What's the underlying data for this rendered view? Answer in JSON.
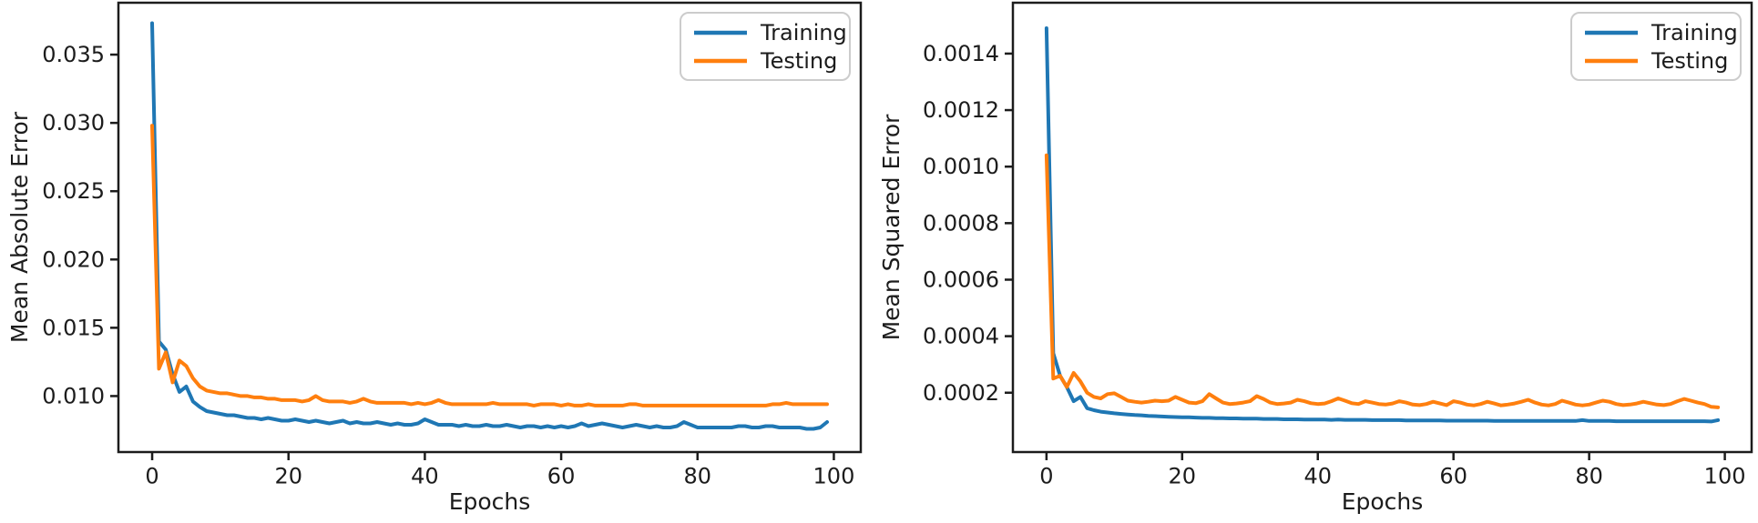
{
  "figure": {
    "background": "#ffffff",
    "description": "Two line charts showing training vs testing error curves over 100 epochs"
  },
  "colors": {
    "training": "#1f77b4",
    "testing": "#ff7f0e",
    "axis": "#1c1c1c",
    "legend_border": "#cccccc"
  },
  "chart_data": [
    {
      "type": "line",
      "title": "",
      "xlabel": "Epochs",
      "ylabel": "Mean Absolute Error",
      "xlim": [
        -4.95,
        103.95
      ],
      "ylim": [
        0.0059,
        0.0388
      ],
      "xticks": [
        0,
        20,
        40,
        60,
        80,
        100
      ],
      "xtick_labels": [
        "0",
        "20",
        "40",
        "60",
        "80",
        "100"
      ],
      "yticks": [
        0.01,
        0.015,
        0.02,
        0.025,
        0.03,
        0.035
      ],
      "ytick_labels": [
        "0.010",
        "0.015",
        "0.020",
        "0.025",
        "0.030",
        "0.035"
      ],
      "grid": false,
      "legend": {
        "position": "upper right",
        "entries": [
          "Training",
          "Testing"
        ]
      },
      "x": [
        0,
        1,
        2,
        3,
        4,
        5,
        6,
        7,
        8,
        9,
        10,
        11,
        12,
        13,
        14,
        15,
        16,
        17,
        18,
        19,
        20,
        21,
        22,
        23,
        24,
        25,
        26,
        27,
        28,
        29,
        30,
        31,
        32,
        33,
        34,
        35,
        36,
        37,
        38,
        39,
        40,
        41,
        42,
        43,
        44,
        45,
        46,
        47,
        48,
        49,
        50,
        51,
        52,
        53,
        54,
        55,
        56,
        57,
        58,
        59,
        60,
        61,
        62,
        63,
        64,
        65,
        66,
        67,
        68,
        69,
        70,
        71,
        72,
        73,
        74,
        75,
        76,
        77,
        78,
        79,
        80,
        81,
        82,
        83,
        84,
        85,
        86,
        87,
        88,
        89,
        90,
        91,
        92,
        93,
        94,
        95,
        96,
        97,
        98,
        99
      ],
      "series": [
        {
          "name": "Training",
          "color": "#1f77b4",
          "values": [
            0.0373,
            0.014,
            0.0134,
            0.0116,
            0.0103,
            0.0107,
            0.0096,
            0.0092,
            0.0089,
            0.0088,
            0.0087,
            0.0086,
            0.0086,
            0.0085,
            0.0084,
            0.0084,
            0.0083,
            0.0084,
            0.0083,
            0.0082,
            0.0082,
            0.0083,
            0.0082,
            0.0081,
            0.0082,
            0.0081,
            0.008,
            0.0081,
            0.0082,
            0.008,
            0.0081,
            0.008,
            0.008,
            0.0081,
            0.008,
            0.0079,
            0.008,
            0.0079,
            0.0079,
            0.008,
            0.0083,
            0.0081,
            0.0079,
            0.0079,
            0.0079,
            0.0078,
            0.0079,
            0.0078,
            0.0078,
            0.0079,
            0.0078,
            0.0078,
            0.0079,
            0.0078,
            0.0077,
            0.0078,
            0.0078,
            0.0077,
            0.0078,
            0.0077,
            0.0078,
            0.0077,
            0.0078,
            0.008,
            0.0078,
            0.0079,
            0.008,
            0.0079,
            0.0078,
            0.0077,
            0.0078,
            0.0079,
            0.0078,
            0.0077,
            0.0078,
            0.0077,
            0.0077,
            0.0078,
            0.0081,
            0.0079,
            0.0077,
            0.0077,
            0.0077,
            0.0077,
            0.0077,
            0.0077,
            0.0078,
            0.0078,
            0.0077,
            0.0077,
            0.0078,
            0.0078,
            0.0077,
            0.0077,
            0.0077,
            0.0077,
            0.0076,
            0.0076,
            0.0077,
            0.0081
          ]
        },
        {
          "name": "Testing",
          "color": "#ff7f0e",
          "values": [
            0.0298,
            0.012,
            0.0132,
            0.011,
            0.0126,
            0.0122,
            0.0113,
            0.0107,
            0.0104,
            0.0103,
            0.0102,
            0.0102,
            0.0101,
            0.01,
            0.01,
            0.0099,
            0.0099,
            0.0098,
            0.0098,
            0.0097,
            0.0097,
            0.0097,
            0.0096,
            0.0097,
            0.01,
            0.0097,
            0.0096,
            0.0096,
            0.0096,
            0.0095,
            0.0096,
            0.0098,
            0.0096,
            0.0095,
            0.0095,
            0.0095,
            0.0095,
            0.0095,
            0.0094,
            0.0095,
            0.0094,
            0.0095,
            0.0097,
            0.0095,
            0.0094,
            0.0094,
            0.0094,
            0.0094,
            0.0094,
            0.0094,
            0.0095,
            0.0094,
            0.0094,
            0.0094,
            0.0094,
            0.0094,
            0.0093,
            0.0094,
            0.0094,
            0.0094,
            0.0093,
            0.0094,
            0.0093,
            0.0093,
            0.0094,
            0.0093,
            0.0093,
            0.0093,
            0.0093,
            0.0093,
            0.0094,
            0.0094,
            0.0093,
            0.0093,
            0.0093,
            0.0093,
            0.0093,
            0.0093,
            0.0093,
            0.0093,
            0.0093,
            0.0093,
            0.0093,
            0.0093,
            0.0093,
            0.0093,
            0.0093,
            0.0093,
            0.0093,
            0.0093,
            0.0093,
            0.0094,
            0.0094,
            0.0095,
            0.0094,
            0.0094,
            0.0094,
            0.0094,
            0.0094,
            0.0094
          ]
        }
      ]
    },
    {
      "type": "line",
      "title": "",
      "xlabel": "Epochs",
      "ylabel": "Mean Squared Error",
      "xlim": [
        -4.95,
        103.95
      ],
      "ylim": [
        -1e-05,
        0.00158
      ],
      "xticks": [
        0,
        20,
        40,
        60,
        80,
        100
      ],
      "xtick_labels": [
        "0",
        "20",
        "40",
        "60",
        "80",
        "100"
      ],
      "yticks": [
        0.0002,
        0.0004,
        0.0006,
        0.0008,
        0.001,
        0.0012,
        0.0014
      ],
      "ytick_labels": [
        "0.0002",
        "0.0004",
        "0.0006",
        "0.0008",
        "0.0010",
        "0.0012",
        "0.0014"
      ],
      "grid": false,
      "legend": {
        "position": "upper right",
        "entries": [
          "Training",
          "Testing"
        ]
      },
      "x": [
        0,
        1,
        2,
        3,
        4,
        5,
        6,
        7,
        8,
        9,
        10,
        11,
        12,
        13,
        14,
        15,
        16,
        17,
        18,
        19,
        20,
        21,
        22,
        23,
        24,
        25,
        26,
        27,
        28,
        29,
        30,
        31,
        32,
        33,
        34,
        35,
        36,
        37,
        38,
        39,
        40,
        41,
        42,
        43,
        44,
        45,
        46,
        47,
        48,
        49,
        50,
        51,
        52,
        53,
        54,
        55,
        56,
        57,
        58,
        59,
        60,
        61,
        62,
        63,
        64,
        65,
        66,
        67,
        68,
        69,
        70,
        71,
        72,
        73,
        74,
        75,
        76,
        77,
        78,
        79,
        80,
        81,
        82,
        83,
        84,
        85,
        86,
        87,
        88,
        89,
        90,
        91,
        92,
        93,
        94,
        95,
        96,
        97,
        98,
        99
      ],
      "series": [
        {
          "name": "Training",
          "color": "#1f77b4",
          "values": [
            0.00149,
            0.00034,
            0.00026,
            0.00022,
            0.00017,
            0.000185,
            0.000145,
            0.000138,
            0.000133,
            0.00013,
            0.000127,
            0.000125,
            0.000123,
            0.000121,
            0.00012,
            0.000118,
            0.000117,
            0.000116,
            0.000115,
            0.000114,
            0.000113,
            0.000113,
            0.000112,
            0.000111,
            0.000111,
            0.00011,
            0.00011,
            0.000109,
            0.000109,
            0.000108,
            0.000108,
            0.000108,
            0.000107,
            0.000107,
            0.000107,
            0.000106,
            0.000106,
            0.000106,
            0.000105,
            0.000105,
            0.000105,
            0.000105,
            0.000104,
            0.000105,
            0.000104,
            0.000104,
            0.000104,
            0.000104,
            0.000103,
            0.000103,
            0.000103,
            0.000103,
            0.000103,
            0.000102,
            0.000102,
            0.000102,
            0.000102,
            0.000102,
            0.000102,
            0.000101,
            0.000101,
            0.000101,
            0.000101,
            0.000101,
            0.000101,
            0.000101,
            0.0001,
            0.0001,
            0.0001,
            0.0001,
            0.0001,
            0.0001,
            0.0001,
            0.0001,
            0.0001,
            0.0001,
            0.0001,
            0.0001,
            0.0001,
            0.000103,
            0.0001,
            0.0001,
            0.0001,
            0.0001,
            9.9e-05,
            9.9e-05,
            9.9e-05,
            9.9e-05,
            9.9e-05,
            9.9e-05,
            9.9e-05,
            9.9e-05,
            9.9e-05,
            9.9e-05,
            9.9e-05,
            9.9e-05,
            9.9e-05,
            9.9e-05,
            9.8e-05,
            0.000103
          ]
        },
        {
          "name": "Testing",
          "color": "#ff7f0e",
          "values": [
            0.00104,
            0.00025,
            0.00026,
            0.00022,
            0.00027,
            0.00024,
            0.0002,
            0.000185,
            0.00018,
            0.000195,
            0.000198,
            0.000185,
            0.000172,
            0.000168,
            0.000165,
            0.000168,
            0.000172,
            0.00017,
            0.000172,
            0.000185,
            0.000175,
            0.000165,
            0.000163,
            0.00017,
            0.000195,
            0.00018,
            0.000165,
            0.00016,
            0.000162,
            0.000165,
            0.00017,
            0.000188,
            0.000178,
            0.000165,
            0.00016,
            0.000162,
            0.000165,
            0.000175,
            0.00017,
            0.000163,
            0.00016,
            0.000162,
            0.00017,
            0.00018,
            0.000172,
            0.000163,
            0.00016,
            0.00017,
            0.000165,
            0.00016,
            0.000158,
            0.000162,
            0.00017,
            0.000165,
            0.000158,
            0.000156,
            0.00016,
            0.000168,
            0.000162,
            0.000156,
            0.00017,
            0.000165,
            0.000158,
            0.000155,
            0.00016,
            0.000168,
            0.000162,
            0.000155,
            0.000158,
            0.000162,
            0.000168,
            0.000175,
            0.000165,
            0.000158,
            0.000155,
            0.00016,
            0.000172,
            0.000165,
            0.000158,
            0.000155,
            0.000158,
            0.000165,
            0.000172,
            0.000168,
            0.00016,
            0.000156,
            0.000158,
            0.000162,
            0.000168,
            0.000163,
            0.000158,
            0.000156,
            0.00016,
            0.00017,
            0.000178,
            0.000172,
            0.000165,
            0.00016,
            0.00015,
            0.000148
          ]
        }
      ]
    }
  ]
}
